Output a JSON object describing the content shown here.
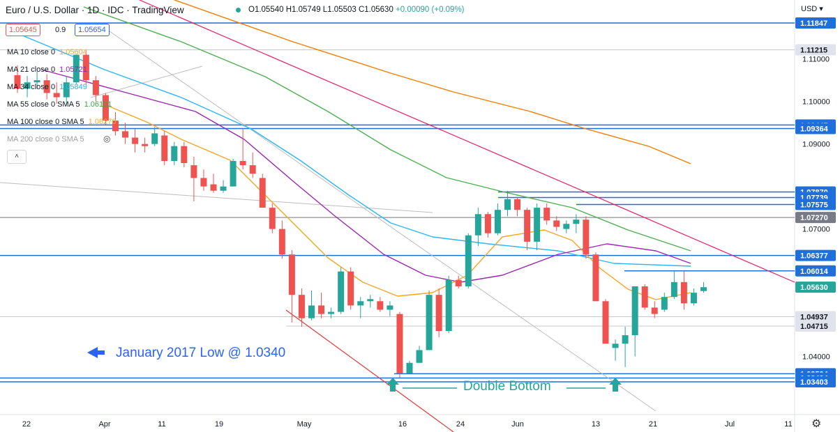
{
  "header": {
    "symbol": "Euro / U.S. Dollar · 1D · IDC · TradingView",
    "ohlc_open": "O1.05540",
    "ohlc_high": "H1.05749",
    "ohlc_low": "L1.05503",
    "ohlc_close": "C1.05630",
    "ohlc_change": "+0.00090 (+0.09%)",
    "sell_price": "1.05645",
    "spread": "0.9",
    "buy_price": "1.05654",
    "currency": "USD"
  },
  "indicators": [
    {
      "label": "MA 10 close 0",
      "value": "1.05604",
      "color": "#f9a825"
    },
    {
      "label": "MA 21 close 0",
      "value": "1.05721",
      "color": "#8e24aa"
    },
    {
      "label": "MA 34 close 0",
      "value": "1.05849",
      "color": "#29b6f6"
    },
    {
      "label": "MA 55 close 0 SMA 5",
      "value": "1.06191",
      "color": "#43a047"
    },
    {
      "label": "MA 100 close 0 SMA 5",
      "value": "1.08270",
      "color": "#f9a825"
    },
    {
      "label": "MA 200 close 0 SMA 5",
      "value": "",
      "color": "#9e9e9e"
    }
  ],
  "annotations": {
    "jan_low": "January 2017 Low @ 1.0340",
    "double_bottom": "Double Bottom"
  },
  "colors": {
    "up": "#26a69a",
    "down": "#ef5350",
    "level": "#1e6fd9",
    "ma10": "#f5a623",
    "ma21": "#9c27b0",
    "ma34": "#29b6f6",
    "ma55": "#4caf50",
    "ma100": "#f57c00",
    "trend": "#e91e63"
  },
  "chart_data": {
    "type": "candlestick",
    "title": "Euro / U.S. Dollar · 1D · IDC · TradingView",
    "ylim": [
      1.0303,
      1.1188
    ],
    "x_ticks": [
      "22",
      "Apr",
      "11",
      "19",
      "May",
      "16",
      "24",
      "Jun",
      "13",
      "21",
      "Jul",
      "11"
    ],
    "price_scale_ticks": [
      "1.11000",
      "1.10000",
      "1.09000",
      "1.07000",
      "1.04000"
    ],
    "level_labels": [
      {
        "price": 1.11847,
        "label": "1.11847",
        "color": "#1e6fd9"
      },
      {
        "price": 1.11215,
        "label": "1.11215",
        "color": "#d0d0d0"
      },
      {
        "price": 1.09447,
        "label": "1.09447",
        "color": "#1e6fd9"
      },
      {
        "price": 1.09364,
        "label": "1.09364",
        "color": "#1e6fd9"
      },
      {
        "price": 1.0787,
        "label": "1.07870",
        "color": "#1e6fd9"
      },
      {
        "price": 1.07739,
        "label": "1.07739",
        "color": "#1e6fd9"
      },
      {
        "price": 1.07575,
        "label": "1.07575",
        "color": "#1e6fd9"
      },
      {
        "price": 1.0727,
        "label": "1.07270",
        "color": "#777777"
      },
      {
        "price": 1.06377,
        "label": "1.06377",
        "color": "#1e6fd9"
      },
      {
        "price": 1.06014,
        "label": "1.06014",
        "color": "#1e6fd9"
      },
      {
        "price": 1.0563,
        "label": "1.05630",
        "color": "#26a69a"
      },
      {
        "price": 1.04937,
        "label": "1.04937",
        "color": "#d0d0d0"
      },
      {
        "price": 1.04715,
        "label": "1.04715",
        "color": "#d0d0d0"
      },
      {
        "price": 1.03594,
        "label": "1.03594",
        "color": "#1e6fd9"
      },
      {
        "price": 1.03494,
        "label": "1.03494",
        "color": "#1e6fd9"
      },
      {
        "price": 1.03403,
        "label": "1.03403",
        "color": "#1e6fd9"
      }
    ],
    "candles": [
      [
        1.1062,
        1.1085,
        1.102,
        1.103
      ],
      [
        1.103,
        1.106,
        1.101,
        1.1045
      ],
      [
        1.1045,
        1.107,
        1.103,
        1.105
      ],
      [
        1.105,
        1.1064,
        1.1005,
        1.102
      ],
      [
        1.102,
        1.1045,
        1.0995,
        1.101
      ],
      [
        1.101,
        1.106,
        1.099,
        1.1045
      ],
      [
        1.1045,
        1.111,
        1.104,
        1.111
      ],
      [
        1.111,
        1.112,
        1.104,
        1.105
      ],
      [
        1.105,
        1.106,
        1.1,
        1.1015
      ],
      [
        1.1015,
        1.102,
        1.0945,
        1.0955
      ],
      [
        1.0955,
        1.0975,
        1.092,
        1.093
      ],
      [
        1.093,
        1.095,
        1.09,
        1.0915
      ],
      [
        1.0915,
        1.0935,
        1.088,
        1.09
      ],
      [
        1.09,
        1.0915,
        1.088,
        1.0895
      ],
      [
        1.09,
        1.094,
        1.0895,
        1.0925
      ],
      [
        1.092,
        1.093,
        1.085,
        1.086
      ],
      [
        1.086,
        1.0905,
        1.085,
        1.0895
      ],
      [
        1.0895,
        1.0905,
        1.0845,
        1.0855
      ],
      [
        1.085,
        1.087,
        1.0765,
        1.082
      ],
      [
        1.082,
        1.084,
        1.079,
        1.08
      ],
      [
        1.0805,
        1.083,
        1.0785,
        1.079
      ],
      [
        1.079,
        1.0815,
        1.0785,
        1.08
      ],
      [
        1.08,
        1.0865,
        1.08,
        1.086
      ],
      [
        1.086,
        1.0935,
        1.084,
        1.085
      ],
      [
        1.085,
        1.088,
        1.082,
        1.083
      ],
      [
        1.082,
        1.083,
        1.0755,
        1.075
      ],
      [
        1.075,
        1.076,
        1.069,
        1.07
      ],
      [
        1.07,
        1.072,
        1.063,
        1.064
      ],
      [
        1.064,
        1.065,
        1.048,
        1.0545
      ],
      [
        1.0545,
        1.056,
        1.047,
        1.049
      ],
      [
        1.049,
        1.0555,
        1.0485,
        1.052
      ],
      [
        1.052,
        1.055,
        1.049,
        1.05
      ],
      [
        1.05,
        1.0515,
        1.049,
        1.0505
      ],
      [
        1.0505,
        1.061,
        1.05,
        1.06
      ],
      [
        1.06,
        1.061,
        1.051,
        1.052
      ],
      [
        1.052,
        1.054,
        1.049,
        1.053
      ],
      [
        1.053,
        1.0545,
        1.0515,
        1.0535
      ],
      [
        1.053,
        1.054,
        1.0505,
        1.051
      ],
      [
        1.051,
        1.053,
        1.0495,
        1.052
      ],
      [
        1.05,
        1.0505,
        1.035,
        1.036
      ],
      [
        1.036,
        1.039,
        1.036,
        1.0385
      ],
      [
        1.0385,
        1.0425,
        1.0385,
        1.0415
      ],
      [
        1.0415,
        1.0555,
        1.0415,
        1.0545
      ],
      [
        1.0545,
        1.056,
        1.0445,
        1.046
      ],
      [
        1.046,
        1.059,
        1.0455,
        1.058
      ],
      [
        1.058,
        1.059,
        1.056,
        1.0565
      ],
      [
        1.0565,
        1.069,
        1.056,
        1.0685
      ],
      [
        1.0685,
        1.075,
        1.066,
        1.0735
      ],
      [
        1.0735,
        1.074,
        1.068,
        1.069
      ],
      [
        1.069,
        1.076,
        1.0685,
        1.0745
      ],
      [
        1.0745,
        1.079,
        1.073,
        1.077
      ],
      [
        1.077,
        1.0775,
        1.073,
        1.0745
      ],
      [
        1.0745,
        1.075,
        1.065,
        1.067
      ],
      [
        1.067,
        1.076,
        1.065,
        1.075
      ],
      [
        1.075,
        1.076,
        1.071,
        1.072
      ],
      [
        1.072,
        1.073,
        1.0695,
        1.0705
      ],
      [
        1.07,
        1.072,
        1.069,
        1.0712
      ],
      [
        1.0712,
        1.0735,
        1.069,
        1.0722
      ],
      [
        1.0722,
        1.073,
        1.063,
        1.064
      ],
      [
        1.064,
        1.0645,
        1.053,
        1.053
      ],
      [
        1.053,
        1.0535,
        1.043,
        1.043
      ],
      [
        1.042,
        1.044,
        1.039,
        1.043
      ],
      [
        1.043,
        1.047,
        1.0375,
        1.045
      ],
      [
        1.045,
        1.0565,
        1.04,
        1.0565
      ],
      [
        1.0565,
        1.057,
        1.051,
        1.0515
      ],
      [
        1.0515,
        1.053,
        1.049,
        1.05
      ],
      [
        1.051,
        1.055,
        1.0505,
        1.054
      ],
      [
        1.054,
        1.06,
        1.0535,
        1.0575
      ],
      [
        1.0575,
        1.06,
        1.051,
        1.0525
      ],
      [
        1.0525,
        1.056,
        1.052,
        1.055
      ],
      [
        1.0554,
        1.0575,
        1.055,
        1.0563
      ]
    ]
  }
}
